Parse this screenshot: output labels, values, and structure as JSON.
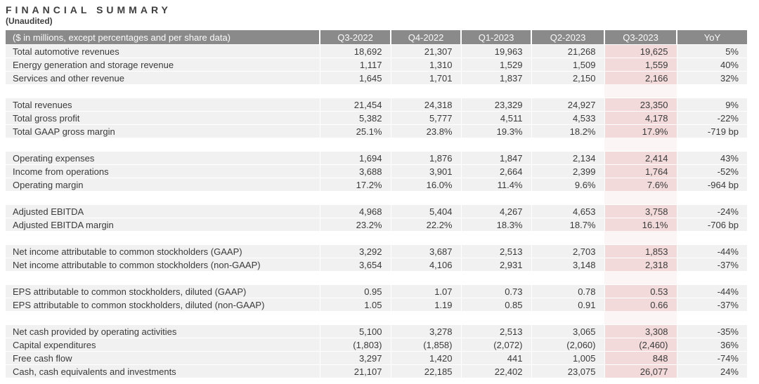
{
  "title": "FINANCIAL SUMMARY",
  "subtitle": "(Unaudited)",
  "table": {
    "header": [
      "($ in millions, except percentages and per share data)",
      "Q3-2022",
      "Q4-2022",
      "Q1-2023",
      "Q2-2023",
      "Q3-2023",
      "YoY"
    ],
    "highlight_column": "Q3-2023",
    "colors": {
      "header_bg": "#8a8a8a",
      "header_text": "#fbfbfb",
      "row_bg": "#f1f1f1",
      "highlight_bg": "#f3dada",
      "highlight_spacer_bg": "#fcf5f5",
      "text": "#3a3a3a"
    },
    "groups": [
      {
        "rows": [
          {
            "label": "Total automotive revenues",
            "values": [
              "18,692",
              "21,307",
              "19,963",
              "21,268",
              "19,625",
              "5%"
            ]
          },
          {
            "label": "Energy generation and storage revenue",
            "values": [
              "1,117",
              "1,310",
              "1,529",
              "1,509",
              "1,559",
              "40%"
            ]
          },
          {
            "label": "Services and other revenue",
            "values": [
              "1,645",
              "1,701",
              "1,837",
              "2,150",
              "2,166",
              "32%"
            ]
          }
        ]
      },
      {
        "rows": [
          {
            "label": "Total revenues",
            "values": [
              "21,454",
              "24,318",
              "23,329",
              "24,927",
              "23,350",
              "9%"
            ]
          },
          {
            "label": "Total gross profit",
            "values": [
              "5,382",
              "5,777",
              "4,511",
              "4,533",
              "4,178",
              "-22%"
            ]
          },
          {
            "label": "Total GAAP gross margin",
            "values": [
              "25.1%",
              "23.8%",
              "19.3%",
              "18.2%",
              "17.9%",
              "-719 bp"
            ]
          }
        ]
      },
      {
        "rows": [
          {
            "label": "Operating expenses",
            "values": [
              "1,694",
              "1,876",
              "1,847",
              "2,134",
              "2,414",
              "43%"
            ]
          },
          {
            "label": "Income from operations",
            "values": [
              "3,688",
              "3,901",
              "2,664",
              "2,399",
              "1,764",
              "-52%"
            ]
          },
          {
            "label": "Operating margin",
            "values": [
              "17.2%",
              "16.0%",
              "11.4%",
              "9.6%",
              "7.6%",
              "-964 bp"
            ]
          }
        ]
      },
      {
        "rows": [
          {
            "label": "Adjusted EBITDA",
            "values": [
              "4,968",
              "5,404",
              "4,267",
              "4,653",
              "3,758",
              "-24%"
            ]
          },
          {
            "label": "Adjusted EBITDA margin",
            "values": [
              "23.2%",
              "22.2%",
              "18.3%",
              "18.7%",
              "16.1%",
              "-706 bp"
            ]
          }
        ]
      },
      {
        "rows": [
          {
            "label": "Net income attributable to common stockholders (GAAP)",
            "values": [
              "3,292",
              "3,687",
              "2,513",
              "2,703",
              "1,853",
              "-44%"
            ]
          },
          {
            "label": "Net income attributable to common stockholders (non-GAAP)",
            "values": [
              "3,654",
              "4,106",
              "2,931",
              "3,148",
              "2,318",
              "-37%"
            ]
          }
        ]
      },
      {
        "rows": [
          {
            "label": "EPS attributable to common stockholders, diluted (GAAP)",
            "values": [
              "0.95",
              "1.07",
              "0.73",
              "0.78",
              "0.53",
              "-44%"
            ]
          },
          {
            "label": "EPS attributable to common stockholders, diluted (non-GAAP)",
            "values": [
              "1.05",
              "1.19",
              "0.85",
              "0.91",
              "0.66",
              "-37%"
            ]
          }
        ]
      },
      {
        "rows": [
          {
            "label": "Net cash provided by operating activities",
            "values": [
              "5,100",
              "3,278",
              "2,513",
              "3,065",
              "3,308",
              "-35%"
            ]
          },
          {
            "label": "Capital expenditures",
            "values": [
              "(1,803)",
              "(1,858)",
              "(2,072)",
              "(2,060)",
              "(2,460)",
              "36%"
            ]
          },
          {
            "label": "Free cash flow",
            "values": [
              "3,297",
              "1,420",
              "441",
              "1,005",
              "848",
              "-74%"
            ]
          },
          {
            "label": "Cash, cash equivalents and investments",
            "values": [
              "21,107",
              "22,185",
              "22,402",
              "23,075",
              "26,077",
              "24%"
            ]
          }
        ]
      }
    ]
  }
}
